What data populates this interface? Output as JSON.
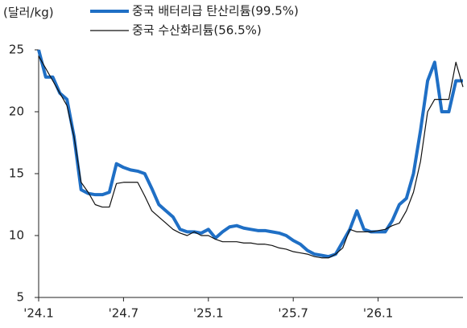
{
  "chart_data": {
    "type": "line",
    "y_unit": "(달러/kg)",
    "x": [
      0,
      0.5,
      1,
      1.5,
      2,
      2.5,
      3,
      3.5,
      4,
      4.5,
      5,
      5.5,
      6,
      6.5,
      7,
      7.5,
      8,
      8.5,
      9,
      9.5,
      10,
      10.5,
      11,
      11.5,
      12,
      12.5,
      13,
      13.5,
      14,
      14.5,
      15,
      15.5,
      16,
      16.5,
      17,
      17.5,
      18,
      18.5,
      19,
      19.5,
      20,
      20.5,
      21,
      21.5,
      22,
      22.5,
      23,
      23.5,
      24,
      24.5,
      25,
      25.5,
      26,
      26.5,
      27,
      27.5,
      28,
      28.5,
      29,
      29.5,
      30
    ],
    "series": [
      {
        "name": "중국 배터리급 탄산리튬(99.5%)",
        "color": "#1f6fc5",
        "values": [
          25,
          22.8,
          22.8,
          21.5,
          21,
          18,
          13.7,
          13.4,
          13.3,
          13.3,
          13.5,
          15.8,
          15.5,
          15.3,
          15.2,
          15,
          13.8,
          12.5,
          12,
          11.5,
          10.5,
          10.3,
          10.3,
          10.2,
          10.5,
          9.8,
          10.3,
          10.7,
          10.8,
          10.6,
          10.5,
          10.4,
          10.4,
          10.3,
          10.2,
          10,
          9.6,
          9.3,
          8.8,
          8.5,
          8.4,
          8.3,
          8.5,
          9.5,
          10.5,
          12,
          10.5,
          10.3,
          10.3,
          10.3,
          11.2,
          12.5,
          13,
          15,
          18.5,
          22.5,
          24,
          20,
          20,
          22.5,
          22.5
        ]
      },
      {
        "name": "중국 수산화리튬(56.5%)",
        "color": "#111111",
        "values": [
          24.5,
          23.5,
          22.5,
          21.5,
          20.5,
          18,
          14.3,
          13.5,
          12.5,
          12.3,
          12.3,
          14.2,
          14.3,
          14.3,
          14.3,
          13.2,
          12,
          11.5,
          11,
          10.5,
          10.2,
          10,
          10.3,
          10,
          10,
          9.7,
          9.5,
          9.5,
          9.5,
          9.4,
          9.4,
          9.3,
          9.3,
          9.2,
          9,
          8.9,
          8.7,
          8.6,
          8.5,
          8.3,
          8.2,
          8.2,
          8.5,
          9,
          10.5,
          10.3,
          10.3,
          10.3,
          10.4,
          10.5,
          10.8,
          11,
          12,
          13.5,
          16,
          20,
          21,
          21,
          21,
          24,
          22
        ]
      }
    ],
    "xlim": [
      0,
      30
    ],
    "xticks": [
      {
        "value": 0,
        "label": "'24.1"
      },
      {
        "value": 6,
        "label": "'24.7"
      },
      {
        "value": 12,
        "label": "'25.1"
      },
      {
        "value": 18,
        "label": "'25.7"
      },
      {
        "value": 24,
        "label": "'26.1"
      }
    ],
    "ylim": [
      5,
      25
    ],
    "yticks": [
      5,
      10,
      15,
      20,
      25
    ],
    "grid": false
  }
}
